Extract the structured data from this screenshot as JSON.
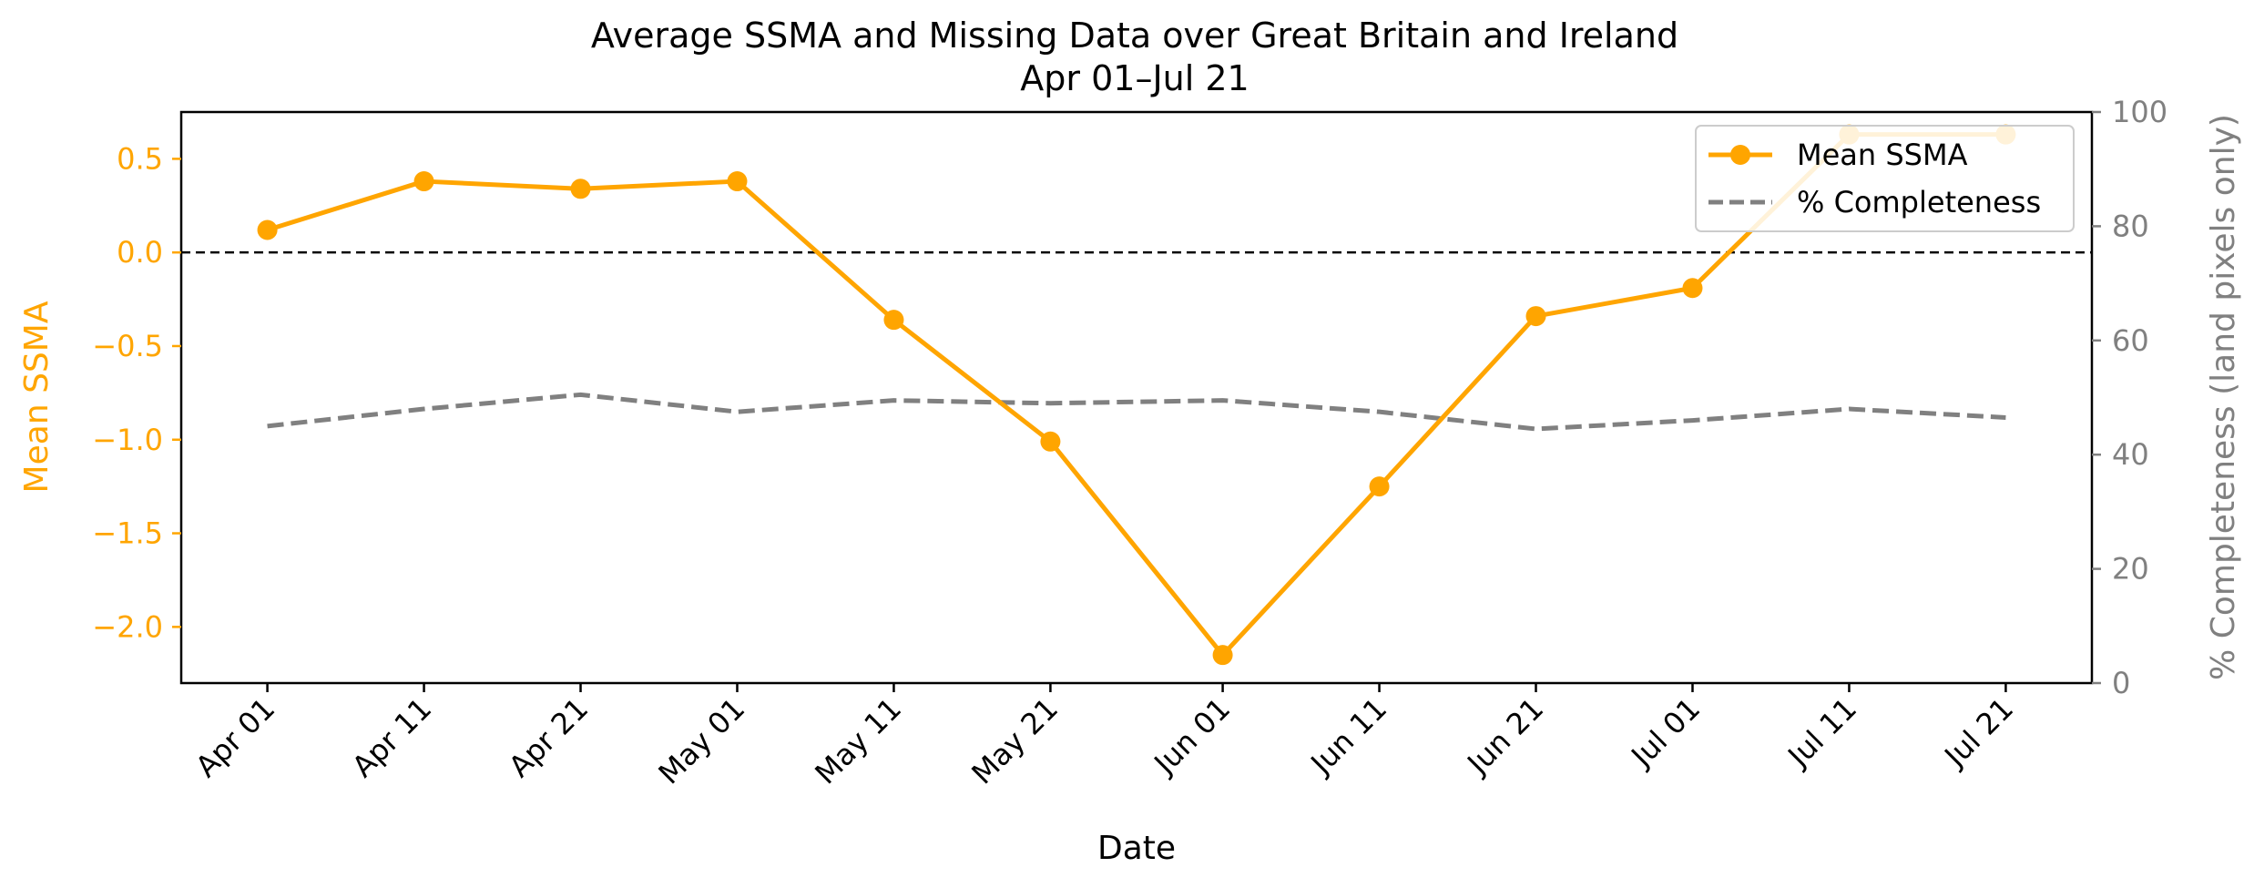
{
  "chart_data": {
    "type": "line",
    "title": "Average SSMA and Missing Data over Great Britain and Ireland",
    "subtitle": "Apr 01–Jul 21",
    "xlabel": "Date",
    "ylabel_left": "Mean SSMA",
    "ylabel_right": "% Completeness (land pixels only)",
    "categories": [
      "Apr 01",
      "Apr 11",
      "Apr 21",
      "May 01",
      "May 11",
      "May 21",
      "Jun 01",
      "Jun 11",
      "Jun 21",
      "Jul 01",
      "Jul 11",
      "Jul 21"
    ],
    "x_day_offsets": [
      0,
      10,
      20,
      30,
      40,
      50,
      61,
      71,
      81,
      91,
      101,
      111
    ],
    "ylim_left": [
      -2.3,
      0.75
    ],
    "yticks_left": [
      -2.0,
      -1.5,
      -1.0,
      -0.5,
      0.0,
      0.5
    ],
    "ytick_labels_left": [
      "−2.0",
      "−1.5",
      "−1.0",
      "−0.5",
      "0.0",
      "0.5"
    ],
    "ylim_right": [
      0,
      100
    ],
    "yticks_right": [
      0,
      20,
      40,
      60,
      80,
      100
    ],
    "ytick_labels_right": [
      "0",
      "20",
      "40",
      "60",
      "80",
      "100"
    ],
    "reference_line": {
      "value": 0.0,
      "style": "dashed",
      "color": "#000000"
    },
    "series": [
      {
        "name": "Mean SSMA",
        "axis": "left",
        "color": "#FFA500",
        "style": "solid-with-markers",
        "values": [
          0.12,
          0.38,
          0.34,
          0.38,
          -0.36,
          -1.01,
          -2.15,
          -1.25,
          -0.34,
          -0.19,
          0.63,
          0.63
        ]
      },
      {
        "name": "% Completeness",
        "axis": "right",
        "color": "#808080",
        "style": "dashed",
        "values": [
          45,
          48,
          50.5,
          47.5,
          49.5,
          49,
          49.5,
          47.5,
          44.5,
          46,
          48,
          46.5
        ]
      }
    ],
    "legend_position": "top-right"
  }
}
